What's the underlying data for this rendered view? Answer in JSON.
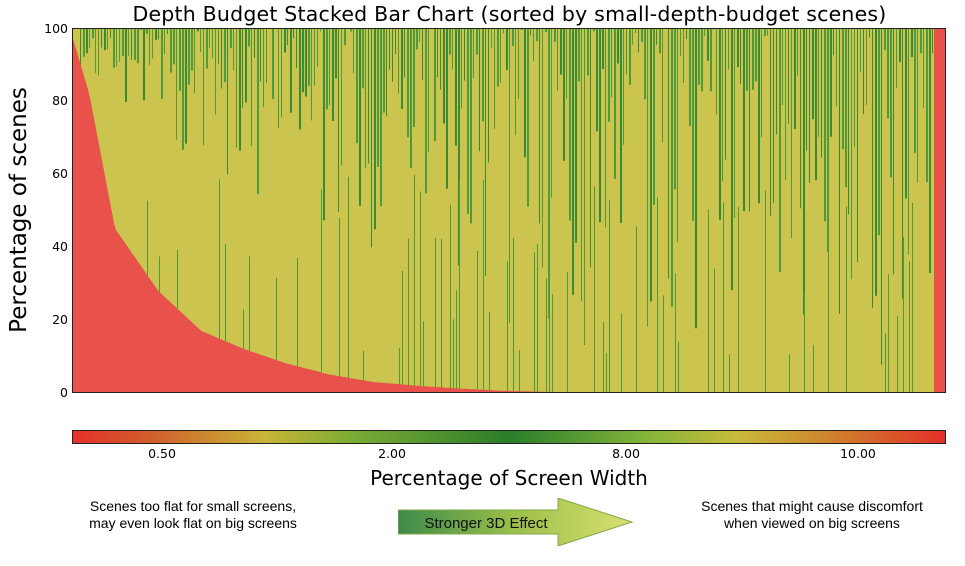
{
  "chart_data": {
    "type": "bar",
    "title": "Depth Budget Stacked Bar Chart (sorted by small-depth-budget scenes)",
    "ylabel": "Percentage of scenes",
    "xlabel": "",
    "ylim": [
      0,
      100
    ],
    "yticks": [
      "0",
      "20",
      "40",
      "60",
      "80",
      "100"
    ],
    "grid": false,
    "small_depth_share_profile": {
      "description_points_fraction": [
        0,
        0.02,
        0.05,
        0.1,
        0.15,
        0.2,
        0.25,
        0.3,
        0.35,
        0.4,
        0.45,
        0.5,
        0.55,
        0.6,
        1.0
      ],
      "values": [
        98,
        82,
        45,
        28,
        17,
        12,
        8,
        5,
        3,
        2,
        1.2,
        0.6,
        0.3,
        0.1,
        0
      ]
    },
    "colorbar": {
      "label": "Percentage of Screen Width",
      "ticks": [
        "0.50",
        "2.00",
        "8.00",
        "10.00"
      ]
    }
  },
  "notes": {
    "left": [
      "Scenes too flat for small screens,",
      "may even look flat on big screens"
    ],
    "right": [
      "Scenes that might cause discomfort",
      "when viewed on big screens"
    ],
    "arrow": "Stronger 3D Effect"
  },
  "colors": {
    "red": "#e8524a",
    "yellow": "#cbc44e",
    "green": "#4f9a3a",
    "dark_green": "#3d8a34",
    "orange": "#d6772e"
  }
}
